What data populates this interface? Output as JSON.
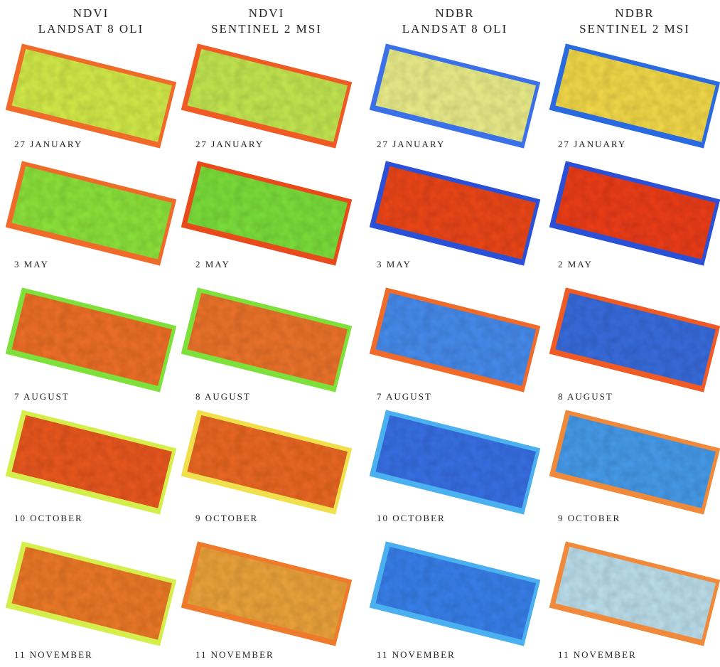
{
  "columns": [
    {
      "title": "NDVI",
      "subtitle": "LANDSAT 8 OLI",
      "dates": [
        "27 JANUARY",
        "3 MAY",
        "7 AUGUST",
        "10 OCTOBER",
        "11 NOVEMBER"
      ]
    },
    {
      "title": "NDVI",
      "subtitle": "SENTINEL 2 MSI",
      "dates": [
        "27 JANUARY",
        "2 MAY",
        "8 AUGUST",
        "9 OCTOBER",
        "11 NOVEMBER"
      ]
    },
    {
      "title": "NDBR",
      "subtitle": "LANDSAT 8 OLI",
      "dates": [
        "27 JANUARY",
        "3 MAY",
        "7 AUGUST",
        "10 OCTOBER",
        "11 NOVEMBER"
      ]
    },
    {
      "title": "NDBR",
      "subtitle": "SENTINEL 2 MSI",
      "dates": [
        "27 JANUARY",
        "2 MAY",
        "8 AUGUST",
        "9 OCTOBER",
        "11 NOVEMBER"
      ]
    }
  ]
}
